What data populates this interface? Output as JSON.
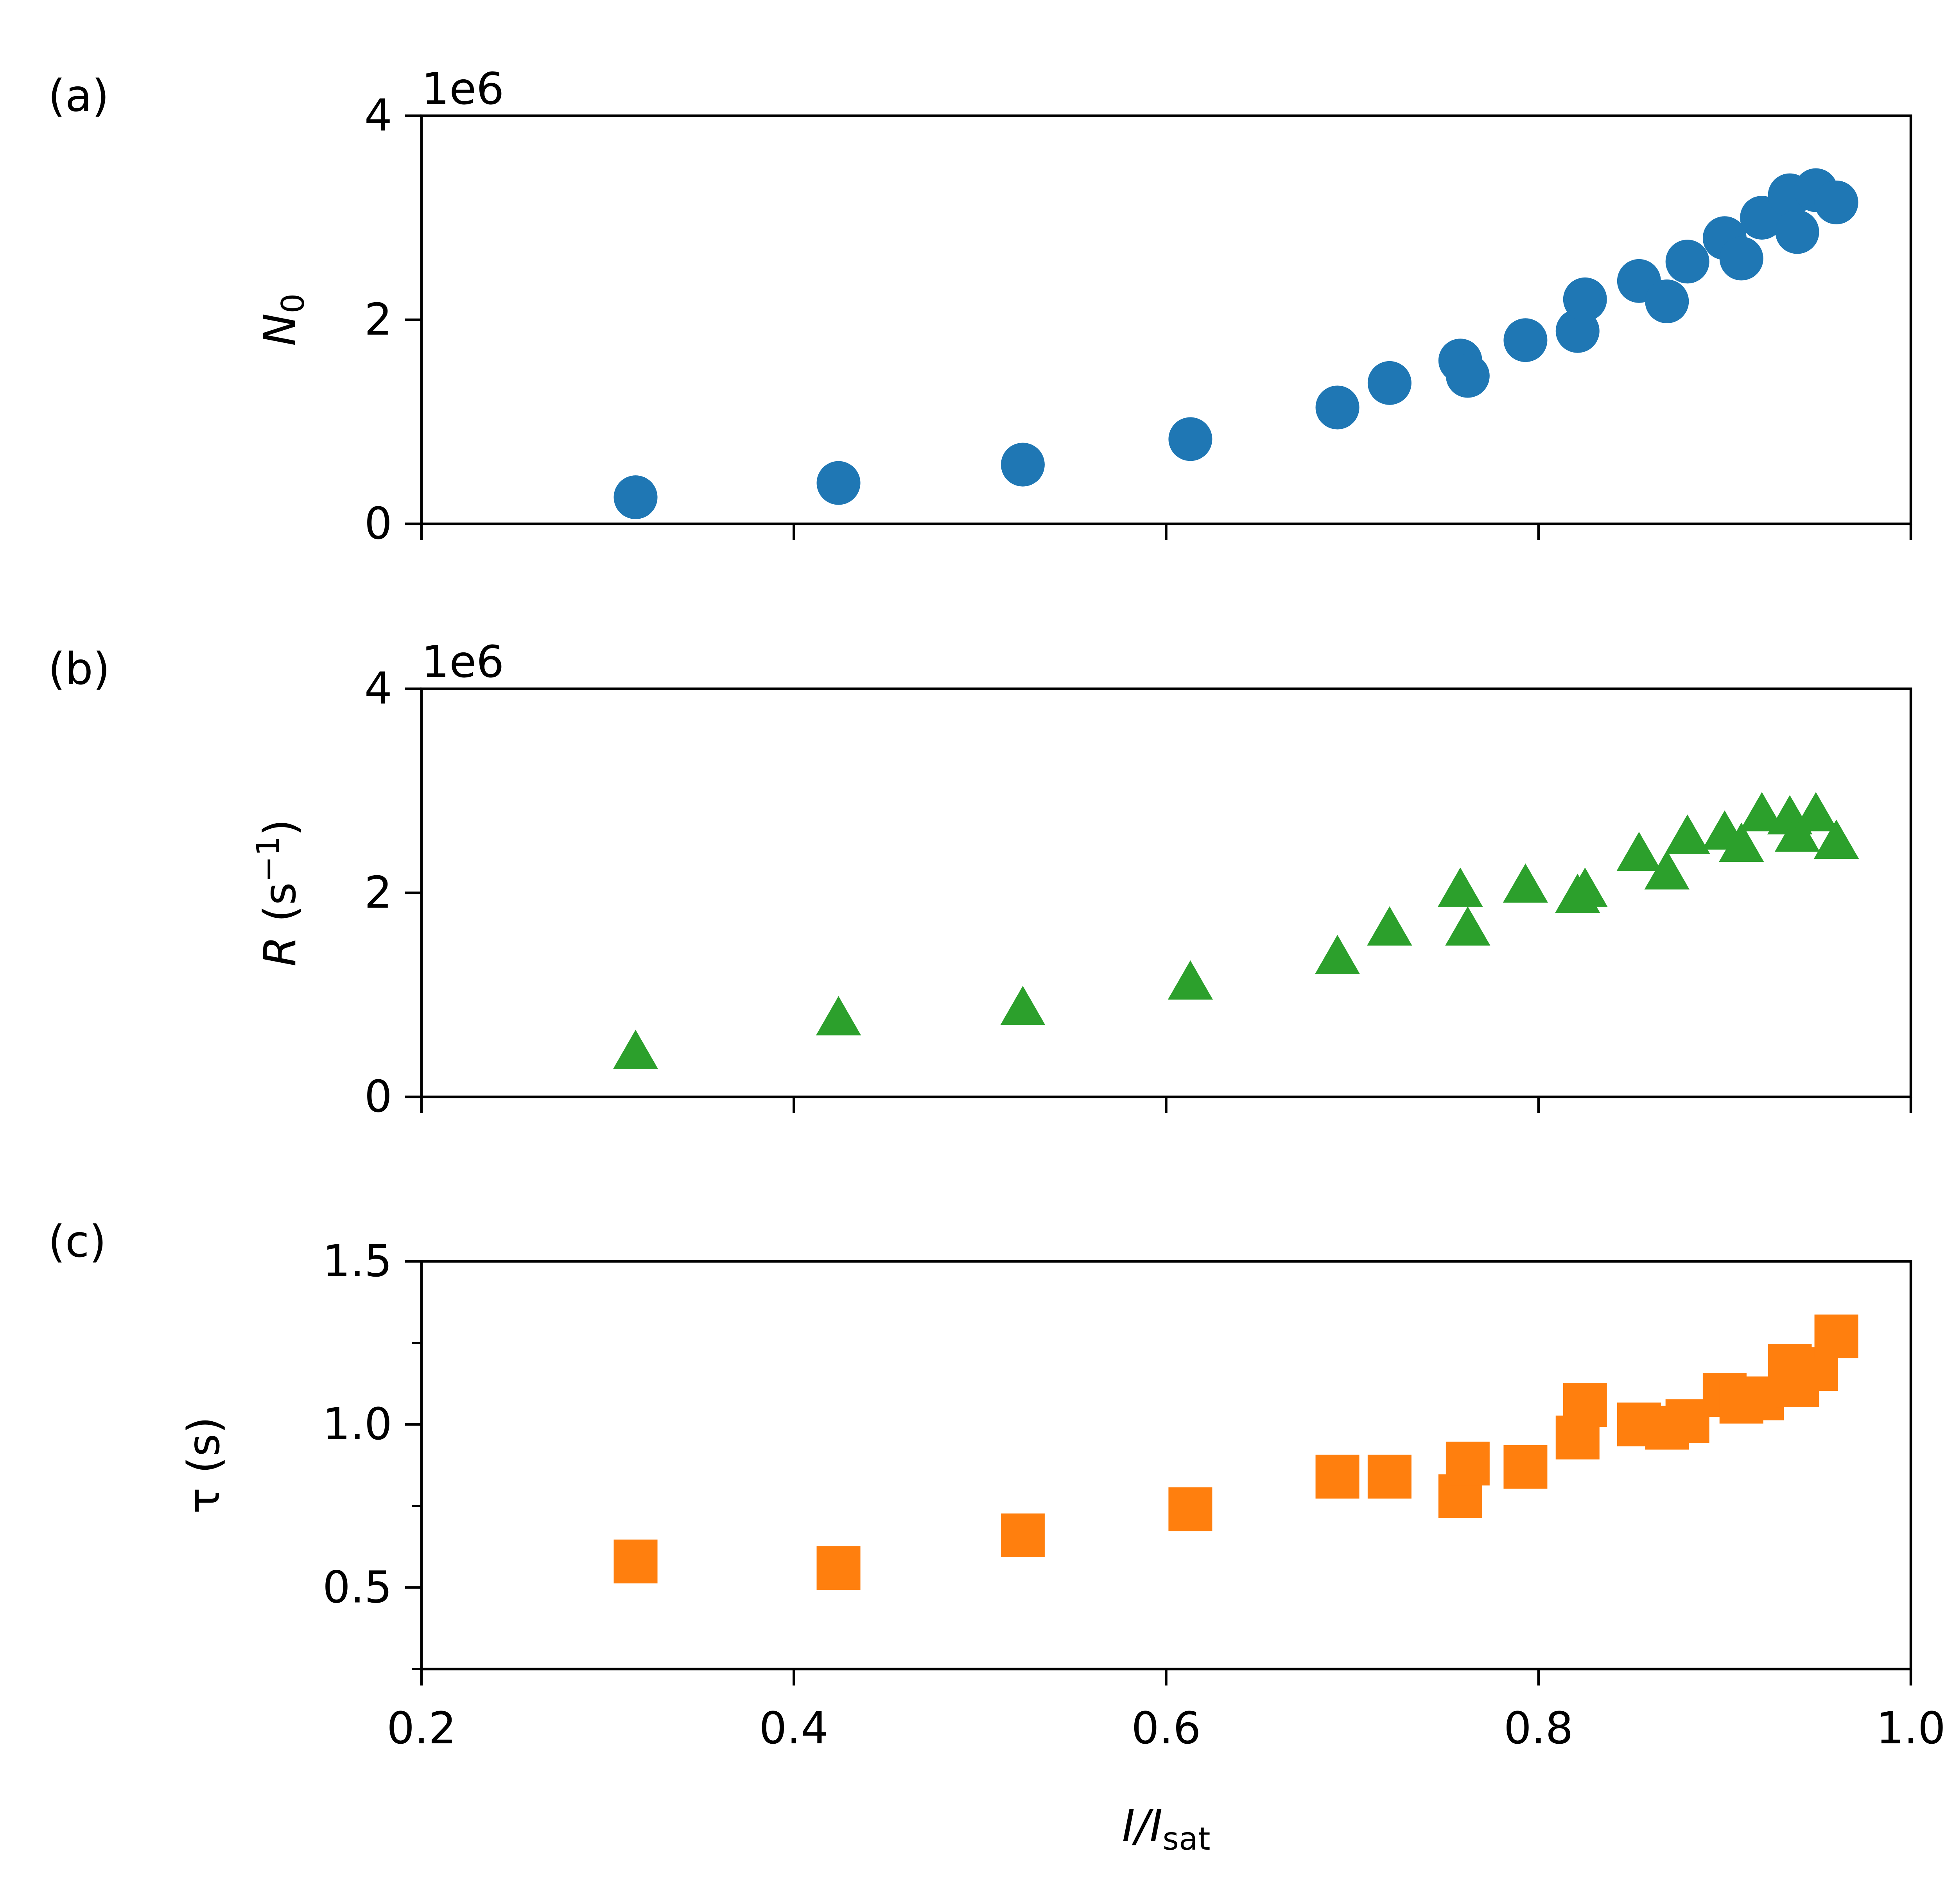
{
  "chart_data": [
    {
      "type": "scatter",
      "panel_label": "(a)",
      "ylabel": "N0",
      "ylabel_main": "N",
      "ylabel_sub": "0",
      "offset_text": "1e6",
      "xlim": [
        0.2,
        1.0
      ],
      "ylim": [
        0,
        4
      ],
      "yticks": [
        0,
        2,
        4
      ],
      "ytick_labels": [
        "0",
        "2",
        "4"
      ],
      "xticks": [
        0.2,
        0.4,
        0.6,
        0.8,
        1.0
      ],
      "show_xtick_labels": false,
      "grid": false,
      "series": [
        {
          "marker": "circle",
          "color": "#1f77b4",
          "x": [
            0.315,
            0.424,
            0.523,
            0.613,
            0.692,
            0.72,
            0.758,
            0.762,
            0.793,
            0.821,
            0.825,
            0.854,
            0.869,
            0.88,
            0.9,
            0.909,
            0.92,
            0.935,
            0.939,
            0.949,
            0.96
          ],
          "y": [
            0.26,
            0.4,
            0.58,
            0.83,
            1.14,
            1.38,
            1.6,
            1.45,
            1.8,
            1.89,
            2.2,
            2.38,
            2.18,
            2.57,
            2.8,
            2.6,
            3.0,
            3.22,
            2.86,
            3.27,
            3.15
          ]
        }
      ]
    },
    {
      "type": "scatter",
      "panel_label": "(b)",
      "ylabel": "R (s−1)",
      "ylabel_main": "R",
      "ylabel_unit_pre": "(s",
      "ylabel_sup": "−1",
      "ylabel_unit_post": ")",
      "offset_text": "1e6",
      "xlim": [
        0.2,
        1.0
      ],
      "ylim": [
        0,
        4
      ],
      "yticks": [
        0,
        2,
        4
      ],
      "ytick_labels": [
        "0",
        "2",
        "4"
      ],
      "xticks": [
        0.2,
        0.4,
        0.6,
        0.8,
        1.0
      ],
      "show_xtick_labels": false,
      "grid": false,
      "series": [
        {
          "marker": "triangle",
          "color": "#2ca02c",
          "x": [
            0.315,
            0.424,
            0.523,
            0.613,
            0.692,
            0.72,
            0.758,
            0.762,
            0.793,
            0.821,
            0.825,
            0.854,
            0.869,
            0.88,
            0.9,
            0.909,
            0.92,
            0.935,
            0.939,
            0.949,
            0.96
          ],
          "y": [
            0.42,
            0.75,
            0.85,
            1.1,
            1.35,
            1.63,
            2.01,
            1.63,
            2.05,
            1.95,
            2.01,
            2.36,
            2.18,
            2.53,
            2.57,
            2.45,
            2.75,
            2.72,
            2.55,
            2.75,
            2.48
          ]
        }
      ]
    },
    {
      "type": "scatter",
      "panel_label": "(c)",
      "ylabel": "τ (s)",
      "xlabel": "I/Isat",
      "xlabel_main": "I/I",
      "xlabel_sub": "sat",
      "xlim": [
        0.2,
        1.0
      ],
      "ylim": [
        0.25,
        1.5
      ],
      "yticks": [
        0.5,
        1.0,
        1.5
      ],
      "ytick_labels": [
        "0.5",
        "1.0",
        "1.5"
      ],
      "yminor_ticks": [
        0.25,
        0.75,
        1.25
      ],
      "xticks": [
        0.2,
        0.4,
        0.6,
        0.8,
        1.0
      ],
      "xtick_labels": [
        "0.2",
        "0.4",
        "0.6",
        "0.8",
        "1.0"
      ],
      "show_xtick_labels": true,
      "grid": false,
      "series": [
        {
          "marker": "square",
          "color": "#ff7f0e",
          "x": [
            0.315,
            0.424,
            0.523,
            0.613,
            0.692,
            0.72,
            0.758,
            0.762,
            0.793,
            0.821,
            0.825,
            0.854,
            0.869,
            0.88,
            0.9,
            0.909,
            0.92,
            0.935,
            0.939,
            0.949,
            0.96
          ],
          "y": [
            0.58,
            0.56,
            0.66,
            0.74,
            0.84,
            0.84,
            0.78,
            0.88,
            0.87,
            0.96,
            1.06,
            1.0,
            0.99,
            1.01,
            1.09,
            1.07,
            1.08,
            1.18,
            1.12,
            1.17,
            1.27
          ]
        }
      ]
    }
  ]
}
